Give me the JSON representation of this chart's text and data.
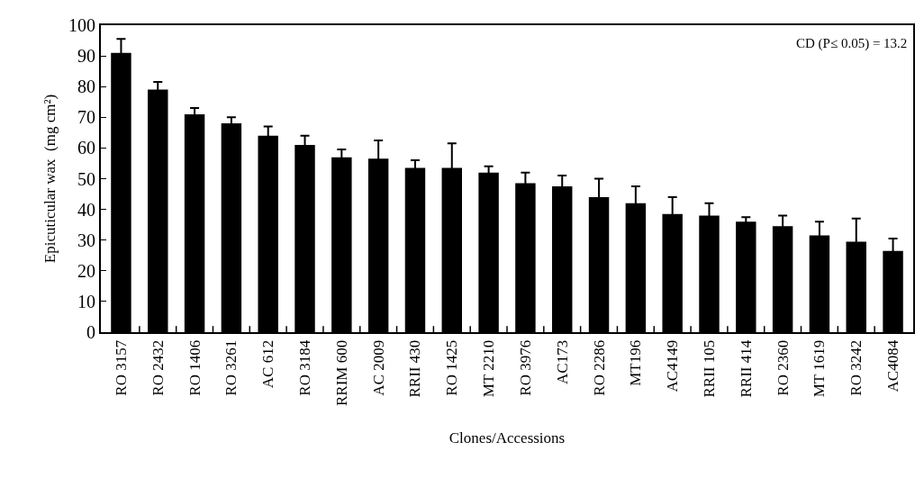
{
  "chart_data": {
    "type": "bar",
    "xlabel": "Clones/Accessions",
    "ylabel": "Epicuticular wax  (mg cm²)",
    "categories": [
      "RO 3157",
      "RO 2432",
      "RO 1406",
      "RO 3261",
      "AC 612",
      "RO 3184",
      "RRIM 600",
      "AC 2009",
      "RRII 430",
      "RO 1425",
      "MT 2210",
      "RO 3976",
      "AC173",
      "RO 2286",
      "MT196",
      "AC4149",
      "RRII 105",
      "RRII 414",
      "RO 2360",
      "MT 1619",
      "RO 3242",
      "AC4084"
    ],
    "values": [
      91,
      79,
      71,
      68,
      64,
      61,
      57,
      56.5,
      53.5,
      53.5,
      52,
      48.5,
      47.5,
      44,
      42,
      38.5,
      38,
      36,
      34.5,
      31.5,
      29.5,
      26.5
    ],
    "errors": [
      4.5,
      2.5,
      2,
      2,
      3,
      3,
      2.5,
      6,
      2.5,
      8,
      2,
      3.5,
      3.5,
      6,
      5.5,
      5.5,
      4,
      1.5,
      3.5,
      4.5,
      7.5,
      4
    ],
    "color": "#000000",
    "ylim": [
      0,
      100
    ],
    "yticks": [
      0,
      10,
      20,
      30,
      40,
      50,
      60,
      70,
      80,
      90,
      100
    ],
    "grid": false,
    "annotations": [
      "CD (P≤ 0.05) = 13.2"
    ]
  }
}
